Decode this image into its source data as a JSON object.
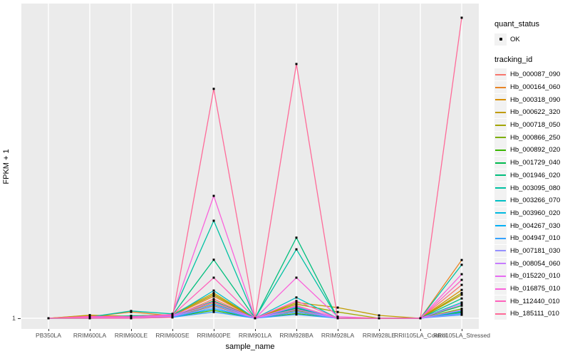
{
  "figure": {
    "panel_background": "#EBEBEB",
    "gridline_color": "#FFFFFF",
    "tick_text_color": "#4D4D4D",
    "marker_color": "#000000"
  },
  "y_axis": {
    "title": "FPKM + 1",
    "tick_label": "1"
  },
  "x_axis": {
    "title": "sample_name"
  },
  "legend": {
    "quant_status_title": "quant_status",
    "ok_label": "OK",
    "tracking_id_title": "tracking_id"
  },
  "chart_data": {
    "type": "line",
    "xlabel": "sample_name",
    "ylabel": "FPKM + 1",
    "y_tick_labels": [
      "1"
    ],
    "y_scale_note": "only the value 1 is labeled on the y axis; series values are estimated point heights as % of panel height above the y=1 baseline",
    "legend_position": "right",
    "grid": "vertical white gridline per category; horizontal white gridline at y=1",
    "point_marker": "small black square (quant_status = OK)",
    "categories": [
      "PB350LA",
      "RRIM600LA",
      "RRIM600LE",
      "RRIM600SE",
      "RRIM600PE",
      "RRIM901LA",
      "RRIM928BA",
      "RRIM928LA",
      "RRIM928LE",
      "RRII105LA_Control",
      "RRII105LA_Stressed"
    ],
    "series": [
      {
        "name": "Hb_000087_090",
        "color": "#F8766D",
        "values": [
          0,
          0.3,
          0.4,
          0.5,
          6.1,
          0,
          4.0,
          0,
          0,
          0,
          10.6
        ]
      },
      {
        "name": "Hb_000164_060",
        "color": "#E88526",
        "values": [
          0,
          0.5,
          2.0,
          0.8,
          7.0,
          0,
          3.0,
          0,
          0,
          0,
          18.5
        ]
      },
      {
        "name": "Hb_000318_090",
        "color": "#D89000",
        "values": [
          0,
          0.9,
          0.5,
          0.6,
          5.0,
          0,
          2.0,
          0,
          0,
          0,
          9.0
        ]
      },
      {
        "name": "Hb_000622_320",
        "color": "#C09B00",
        "values": [
          0,
          1.0,
          0.6,
          1.2,
          8.0,
          0,
          5.0,
          3.4,
          0.9,
          0,
          7.5
        ]
      },
      {
        "name": "Hb_000718_050",
        "color": "#A3A500",
        "values": [
          0,
          0.6,
          0.4,
          1.0,
          7.5,
          0,
          4.5,
          2.0,
          0,
          0,
          8.0
        ]
      },
      {
        "name": "Hb_000866_250",
        "color": "#7CAE00",
        "values": [
          0,
          0.4,
          0.3,
          0.5,
          4.0,
          0,
          2.5,
          0,
          0,
          0,
          3.0
        ]
      },
      {
        "name": "Hb_000892_020",
        "color": "#39B600",
        "values": [
          0,
          0.2,
          0.2,
          0.4,
          2.5,
          0,
          1.5,
          0,
          0,
          0,
          2.0
        ]
      },
      {
        "name": "Hb_001729_040",
        "color": "#00BB4E",
        "values": [
          0,
          0,
          0.3,
          0.6,
          5.5,
          0,
          3.2,
          0,
          0,
          0,
          4.0
        ]
      },
      {
        "name": "Hb_001946_020",
        "color": "#00BF7D",
        "values": [
          0,
          0.2,
          0.8,
          1.0,
          18.6,
          0,
          25.6,
          0,
          0,
          0,
          6.3
        ]
      },
      {
        "name": "Hb_003095_080",
        "color": "#00C1A3",
        "values": [
          0,
          0.4,
          2.3,
          1.4,
          31.0,
          0,
          21.9,
          0,
          0,
          0,
          17.0
        ]
      },
      {
        "name": "Hb_003266_070",
        "color": "#00BFC4",
        "values": [
          0,
          0.3,
          0.5,
          0.8,
          8.8,
          0,
          6.6,
          0,
          0,
          0,
          5.0
        ]
      },
      {
        "name": "Hb_003960_020",
        "color": "#00BAE0",
        "values": [
          0,
          0.1,
          0.2,
          0.5,
          4.5,
          0,
          3.5,
          0,
          0,
          0,
          2.3
        ]
      },
      {
        "name": "Hb_004267_030",
        "color": "#00B0F6",
        "values": [
          0,
          0,
          0.1,
          0.4,
          3.0,
          0,
          2.0,
          0,
          0,
          0,
          1.7
        ]
      },
      {
        "name": "Hb_004947_010",
        "color": "#35A2FF",
        "values": [
          0,
          0,
          0,
          0.3,
          2.0,
          0,
          1.2,
          0,
          0,
          0,
          1.1
        ]
      },
      {
        "name": "Hb_007181_030",
        "color": "#9590FF",
        "values": [
          0,
          0.1,
          0.1,
          0.5,
          3.5,
          0,
          2.2,
          0,
          0,
          0,
          1.4
        ]
      },
      {
        "name": "Hb_008054_060",
        "color": "#C77CFF",
        "values": [
          0,
          0.2,
          0.2,
          0.7,
          4.2,
          0,
          2.8,
          0,
          0,
          0,
          2.6
        ]
      },
      {
        "name": "Hb_015220_010",
        "color": "#E76BF3",
        "values": [
          0,
          0.3,
          0.3,
          0.9,
          5.2,
          0,
          3.8,
          0,
          0,
          0,
          4.5
        ]
      },
      {
        "name": "Hb_016875_010",
        "color": "#FA62DB",
        "values": [
          0,
          0.4,
          0.4,
          1.2,
          38.9,
          0,
          12.9,
          0.5,
          0,
          0,
          14.0
        ]
      },
      {
        "name": "Hb_112440_010",
        "color": "#FF62BC",
        "values": [
          0,
          0.6,
          0.5,
          1.0,
          12.9,
          0,
          5.5,
          0,
          0,
          0,
          12.2
        ]
      },
      {
        "name": "Hb_185111_010",
        "color": "#FF6A98",
        "values": [
          0,
          0,
          0,
          0.3,
          72.9,
          0,
          80.8,
          0,
          0,
          0,
          95.5
        ]
      }
    ]
  }
}
